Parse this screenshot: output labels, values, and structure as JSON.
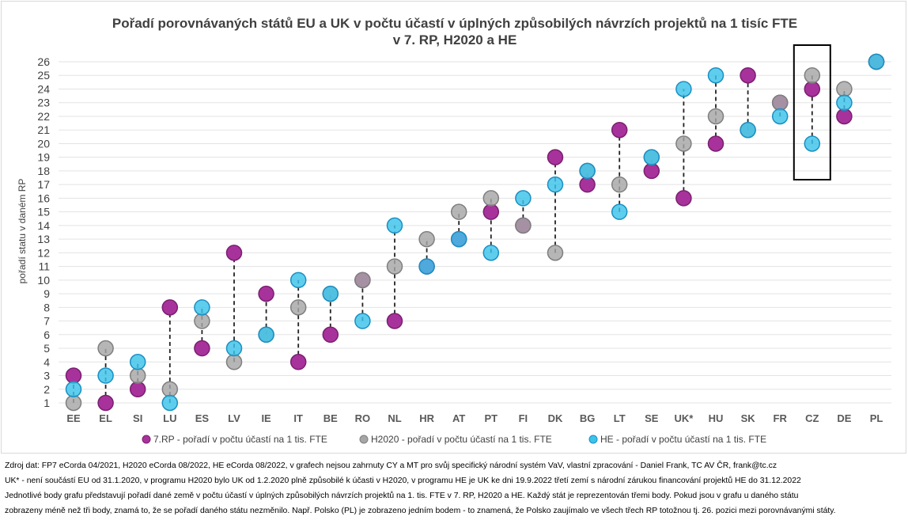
{
  "chart_data": {
    "type": "scatter",
    "title": "Pořadí porovnávaných států EU a UK v počtu účastí v úplných způsobilých návrzích projektů na 1 tisíc FTE",
    "subtitle": "v 7. RP, H2020 a HE",
    "ylabel": "pořadí statu v daném RP",
    "ylim": [
      1,
      26
    ],
    "yticks": [
      "1",
      "2",
      "3",
      "4",
      "5",
      "6",
      "7",
      "8",
      "9",
      "10",
      "11",
      "12",
      "13",
      "14",
      "15",
      "16",
      "17",
      "18",
      "19",
      "20",
      "21",
      "22",
      "23",
      "24",
      "25",
      "26"
    ],
    "grid": "horizontal",
    "legend_position": "bottom",
    "categories": [
      "EE",
      "EL",
      "SI",
      "LU",
      "ES",
      "LV",
      "IE",
      "IT",
      "BE",
      "RO",
      "NL",
      "HR",
      "AT",
      "PT",
      "FI",
      "DK",
      "BG",
      "LT",
      "SE",
      "UK*",
      "HU",
      "SK",
      "FR",
      "CZ",
      "DE",
      "PL"
    ],
    "series": [
      {
        "name": "7.RP - pořadí v počtu účastí na 1 tis. FTE",
        "color": "#a8329b",
        "values": [
          3,
          1,
          2,
          8,
          5,
          12,
          9,
          4,
          6,
          10,
          7,
          11,
          13,
          15,
          14,
          19,
          17,
          21,
          18,
          16,
          20,
          25,
          23,
          24,
          22,
          26
        ]
      },
      {
        "name": "H2020 - pořadí v počtu účastí na 1 tis. FTE",
        "color": "#a6a6a6",
        "values": [
          1,
          5,
          3,
          2,
          7,
          4,
          6,
          8,
          9,
          10,
          11,
          13,
          15,
          16,
          14,
          12,
          18,
          17,
          19,
          20,
          22,
          21,
          23,
          25,
          24,
          26
        ]
      },
      {
        "name": "HE - pořadí v počtu účastí na 1 tis. FTE",
        "color": "#3cc3ea",
        "values": [
          2,
          3,
          4,
          1,
          8,
          5,
          6,
          10,
          9,
          7,
          14,
          11,
          13,
          12,
          16,
          17,
          18,
          15,
          19,
          24,
          25,
          21,
          22,
          20,
          23,
          26
        ]
      }
    ],
    "highlight_category": "CZ"
  },
  "notes": {
    "line1": "Zdroj dat: FP7 eCorda 04/2021, H2020 eCorda 08/2022, HE eCorda 08/2022,  v grafech nejsou zahrnuty CY a MT pro svůj specifický národní systém VaV, vlastní zpracování - Daniel Frank, TC AV ČR, frank@tc.cz",
    "line2": "UK*  - není součástí EU od 31.1.2020, v programu H2020 bylo UK od 1.2.2020 plně způsobilé k účasti v H2020, v programu HE je UK ke dni 19.9.2022 třetí zemí s národní zárukou financování projektů HE do 31.12.2022",
    "line3": "Jednotlivé body grafu představují pořadí dané země v počtu účastí v úplných způsobilých návrzích projektů na 1. tis. FTE v 7. RP, H2020 a HE. Každý stát je reprezentován třemi body. Pokud jsou v grafu u daného státu",
    "line4": "zobrazeny méně než tři body, znamá to, že se pořadí daného státu nezměnilo. Např. Polsko (PL) je zobrazeno jedním bodem - to znamená, že Polsko zaujímalo ve všech třech RP totožnou tj. 26. pozici mezi porovnávanými státy."
  }
}
